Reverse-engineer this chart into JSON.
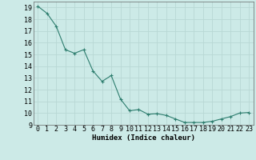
{
  "x": [
    0,
    1,
    2,
    3,
    4,
    5,
    6,
    7,
    8,
    9,
    10,
    11,
    12,
    13,
    14,
    15,
    16,
    17,
    18,
    19,
    20,
    21,
    22,
    23
  ],
  "y": [
    19.1,
    18.5,
    17.4,
    15.4,
    15.1,
    15.4,
    13.6,
    12.7,
    13.2,
    11.2,
    10.2,
    10.3,
    9.9,
    9.95,
    9.8,
    9.5,
    9.2,
    9.2,
    9.2,
    9.3,
    9.5,
    9.7,
    10.0,
    10.05
  ],
  "xlim": [
    -0.5,
    23.5
  ],
  "ylim": [
    9,
    19.5
  ],
  "yticks": [
    9,
    10,
    11,
    12,
    13,
    14,
    15,
    16,
    17,
    18,
    19
  ],
  "xticks": [
    0,
    1,
    2,
    3,
    4,
    5,
    6,
    7,
    8,
    9,
    10,
    11,
    12,
    13,
    14,
    15,
    16,
    17,
    18,
    19,
    20,
    21,
    22,
    23
  ],
  "xlabel": "Humidex (Indice chaleur)",
  "line_color": "#2d7d6e",
  "marker": "+",
  "bg_color": "#cceae7",
  "grid_color": "#b8d8d4",
  "label_fontsize": 6.5,
  "tick_fontsize": 6.0
}
